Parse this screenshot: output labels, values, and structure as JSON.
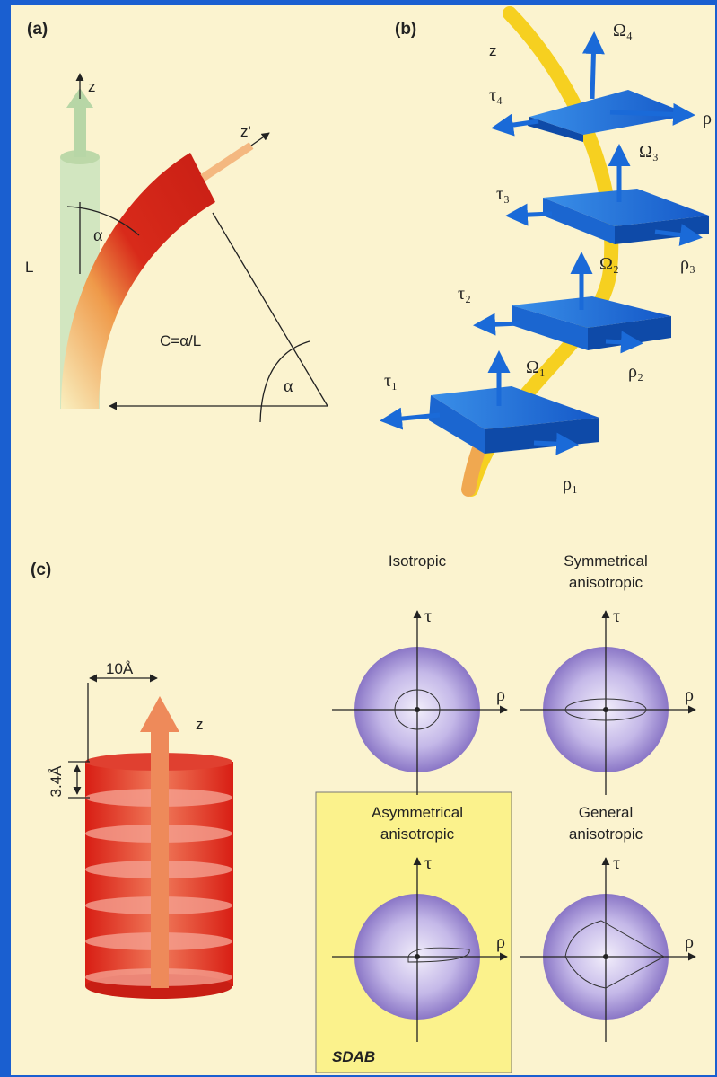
{
  "panel_a": {
    "label": "(a)",
    "z": "z",
    "z_prime": "z'",
    "alpha_top": "α",
    "length": "L",
    "curvature": "C=α/L",
    "alpha_bottom": "α"
  },
  "panel_b": {
    "label": "(b)",
    "z": "z",
    "plates": [
      {
        "omega": "Ω₄",
        "tau": "τ₄",
        "rho": "ρ"
      },
      {
        "omega": "Ω₃",
        "tau": "τ₃",
        "rho": "ρ₃"
      },
      {
        "omega": "Ω₂",
        "tau": "τ₂",
        "rho": "ρ₂"
      },
      {
        "omega": "Ω₁",
        "tau": "τ₁",
        "rho": "ρ₁"
      }
    ]
  },
  "panel_c": {
    "label": "(c)",
    "width": "10Å",
    "pitch": "3.4Å",
    "z": "z",
    "diagrams": [
      {
        "title": [
          "Isotropic"
        ],
        "tau": "τ",
        "rho": "ρ"
      },
      {
        "title": [
          "Symmetrical",
          "anisotropic"
        ],
        "tau": "τ",
        "rho": "ρ"
      },
      {
        "title": [
          "Asymmetrical",
          "anisotropic"
        ],
        "tau": "τ",
        "rho": "ρ"
      },
      {
        "title": [
          "General",
          "anisotropic"
        ],
        "tau": "τ",
        "rho": "ρ"
      }
    ],
    "highlight_tag": "SDAB"
  }
}
